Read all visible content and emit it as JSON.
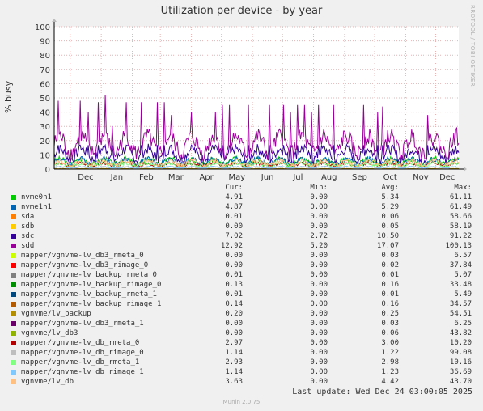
{
  "chart_data": {
    "type": "line",
    "title": "Utilization per device - by year",
    "ylabel": "% busy",
    "ylim": [
      0,
      100
    ],
    "yticks": [
      0,
      10,
      20,
      30,
      40,
      50,
      60,
      70,
      80,
      90,
      100
    ],
    "xlim": [
      "2024-11-15",
      "2025-12-24"
    ],
    "xticks": [
      {
        "label": "Dec",
        "date": "2024-12-01"
      },
      {
        "label": "Jan",
        "date": "2025-01-01"
      },
      {
        "label": "Feb",
        "date": "2025-02-01"
      },
      {
        "label": "Mar",
        "date": "2025-03-01"
      },
      {
        "label": "Apr",
        "date": "2025-04-01"
      },
      {
        "label": "May",
        "date": "2025-05-01"
      },
      {
        "label": "Jun",
        "date": "2025-06-01"
      },
      {
        "label": "Jul",
        "date": "2025-07-01"
      },
      {
        "label": "Aug",
        "date": "2025-08-01"
      },
      {
        "label": "Sep",
        "date": "2025-09-01"
      },
      {
        "label": "Oct",
        "date": "2025-10-01"
      },
      {
        "label": "Nov",
        "date": "2025-11-01"
      },
      {
        "label": "Dec",
        "date": "2025-12-01"
      }
    ],
    "grid": true,
    "legend_position": "bottom",
    "columns": {
      "cur": "Cur:",
      "min": "Min:",
      "avg": "Avg:",
      "max": "Max:"
    },
    "series": [
      {
        "name": "nvme0n1",
        "color": "#00cc00",
        "cur": "4.91",
        "min": "0.00",
        "avg": "5.34",
        "max": "61.11"
      },
      {
        "name": "nvme1n1",
        "color": "#0066b3",
        "cur": "4.87",
        "min": "0.00",
        "avg": "5.29",
        "max": "61.49"
      },
      {
        "name": "sda",
        "color": "#ff8000",
        "cur": "0.01",
        "min": "0.00",
        "avg": "0.06",
        "max": "58.66"
      },
      {
        "name": "sdb",
        "color": "#ffcc00",
        "cur": "0.00",
        "min": "0.00",
        "avg": "0.05",
        "max": "58.19"
      },
      {
        "name": "sdc",
        "color": "#330099",
        "cur": "7.02",
        "min": "2.72",
        "avg": "10.50",
        "max": "91.22"
      },
      {
        "name": "sdd",
        "color": "#990099",
        "cur": "12.92",
        "min": "5.20",
        "avg": "17.07",
        "max": "100.13"
      },
      {
        "name": "mapper/vgnvme-lv_db3_rmeta_0",
        "color": "#ccff00",
        "cur": "0.00",
        "min": "0.00",
        "avg": "0.03",
        "max": "6.57"
      },
      {
        "name": "mapper/vgnvme-lv_db3_rimage_0",
        "color": "#ff0000",
        "cur": "0.00",
        "min": "0.00",
        "avg": "0.02",
        "max": "37.84"
      },
      {
        "name": "mapper/vgnvme-lv_backup_rmeta_0",
        "color": "#808080",
        "cur": "0.01",
        "min": "0.00",
        "avg": "0.01",
        "max": "5.07"
      },
      {
        "name": "mapper/vgnvme-lv_backup_rimage_0",
        "color": "#008f00",
        "cur": "0.13",
        "min": "0.00",
        "avg": "0.16",
        "max": "33.48"
      },
      {
        "name": "mapper/vgnvme-lv_backup_rmeta_1",
        "color": "#00487d",
        "cur": "0.01",
        "min": "0.00",
        "avg": "0.01",
        "max": "5.49"
      },
      {
        "name": "mapper/vgnvme-lv_backup_rimage_1",
        "color": "#b35a00",
        "cur": "0.14",
        "min": "0.00",
        "avg": "0.16",
        "max": "34.57"
      },
      {
        "name": "vgnvme/lv_backup",
        "color": "#b38f00",
        "cur": "0.20",
        "min": "0.00",
        "avg": "0.25",
        "max": "54.51"
      },
      {
        "name": "mapper/vgnvme-lv_db3_rmeta_1",
        "color": "#6b006b",
        "cur": "0.00",
        "min": "0.00",
        "avg": "0.03",
        "max": "6.25"
      },
      {
        "name": "vgnvme/lv_db3",
        "color": "#8fb300",
        "cur": "0.00",
        "min": "0.00",
        "avg": "0.06",
        "max": "43.82"
      },
      {
        "name": "mapper/vgnvme-lv_db_rmeta_0",
        "color": "#b30000",
        "cur": "2.97",
        "min": "0.00",
        "avg": "3.00",
        "max": "10.20"
      },
      {
        "name": "mapper/vgnvme-lv_db_rimage_0",
        "color": "#bebebe",
        "cur": "1.14",
        "min": "0.00",
        "avg": "1.22",
        "max": "99.08"
      },
      {
        "name": "mapper/vgnvme-lv_db_rmeta_1",
        "color": "#80ff80",
        "cur": "2.93",
        "min": "0.00",
        "avg": "2.98",
        "max": "10.16"
      },
      {
        "name": "mapper/vgnvme-lv_db_rimage_1",
        "color": "#80c9ff",
        "cur": "1.14",
        "min": "0.00",
        "avg": "1.23",
        "max": "36.69"
      },
      {
        "name": "vgnvme/lv_db",
        "color": "#ffc080",
        "cur": "3.63",
        "min": "0.00",
        "avg": "4.42",
        "max": "43.70"
      }
    ],
    "spikes": [
      {
        "date": "2024-11-19",
        "value": 48
      },
      {
        "date": "2024-12-11",
        "value": 48
      },
      {
        "date": "2024-12-19",
        "value": 40
      },
      {
        "date": "2024-12-29",
        "value": 47
      },
      {
        "date": "2025-01-05",
        "value": 52
      },
      {
        "date": "2025-01-12",
        "value": 30
      },
      {
        "date": "2025-01-26",
        "value": 47
      },
      {
        "date": "2025-02-10",
        "value": 47
      },
      {
        "date": "2025-02-26",
        "value": 47
      },
      {
        "date": "2025-03-05",
        "value": 47
      },
      {
        "date": "2025-03-12",
        "value": 38
      },
      {
        "date": "2025-04-01",
        "value": 40
      },
      {
        "date": "2025-04-25",
        "value": 40
      },
      {
        "date": "2025-05-02",
        "value": 45
      },
      {
        "date": "2025-05-09",
        "value": 45
      },
      {
        "date": "2025-05-28",
        "value": 45
      },
      {
        "date": "2025-06-18",
        "value": 45
      },
      {
        "date": "2025-07-02",
        "value": 45
      },
      {
        "date": "2025-07-09",
        "value": 40
      },
      {
        "date": "2025-07-16",
        "value": 45
      },
      {
        "date": "2025-07-23",
        "value": 45
      },
      {
        "date": "2025-07-30",
        "value": 40
      },
      {
        "date": "2025-08-06",
        "value": 45
      },
      {
        "date": "2025-08-21",
        "value": 45
      },
      {
        "date": "2025-09-20",
        "value": 45
      },
      {
        "date": "2025-10-04",
        "value": 40
      },
      {
        "date": "2025-10-09",
        "value": 44
      },
      {
        "date": "2025-11-23",
        "value": 38
      }
    ]
  },
  "watermark": "RRDTOOL / TOBI OETIKER",
  "last_update": "Last update: Wed Dec 24 03:00:05 2025",
  "footer": "Munin 2.0.75"
}
